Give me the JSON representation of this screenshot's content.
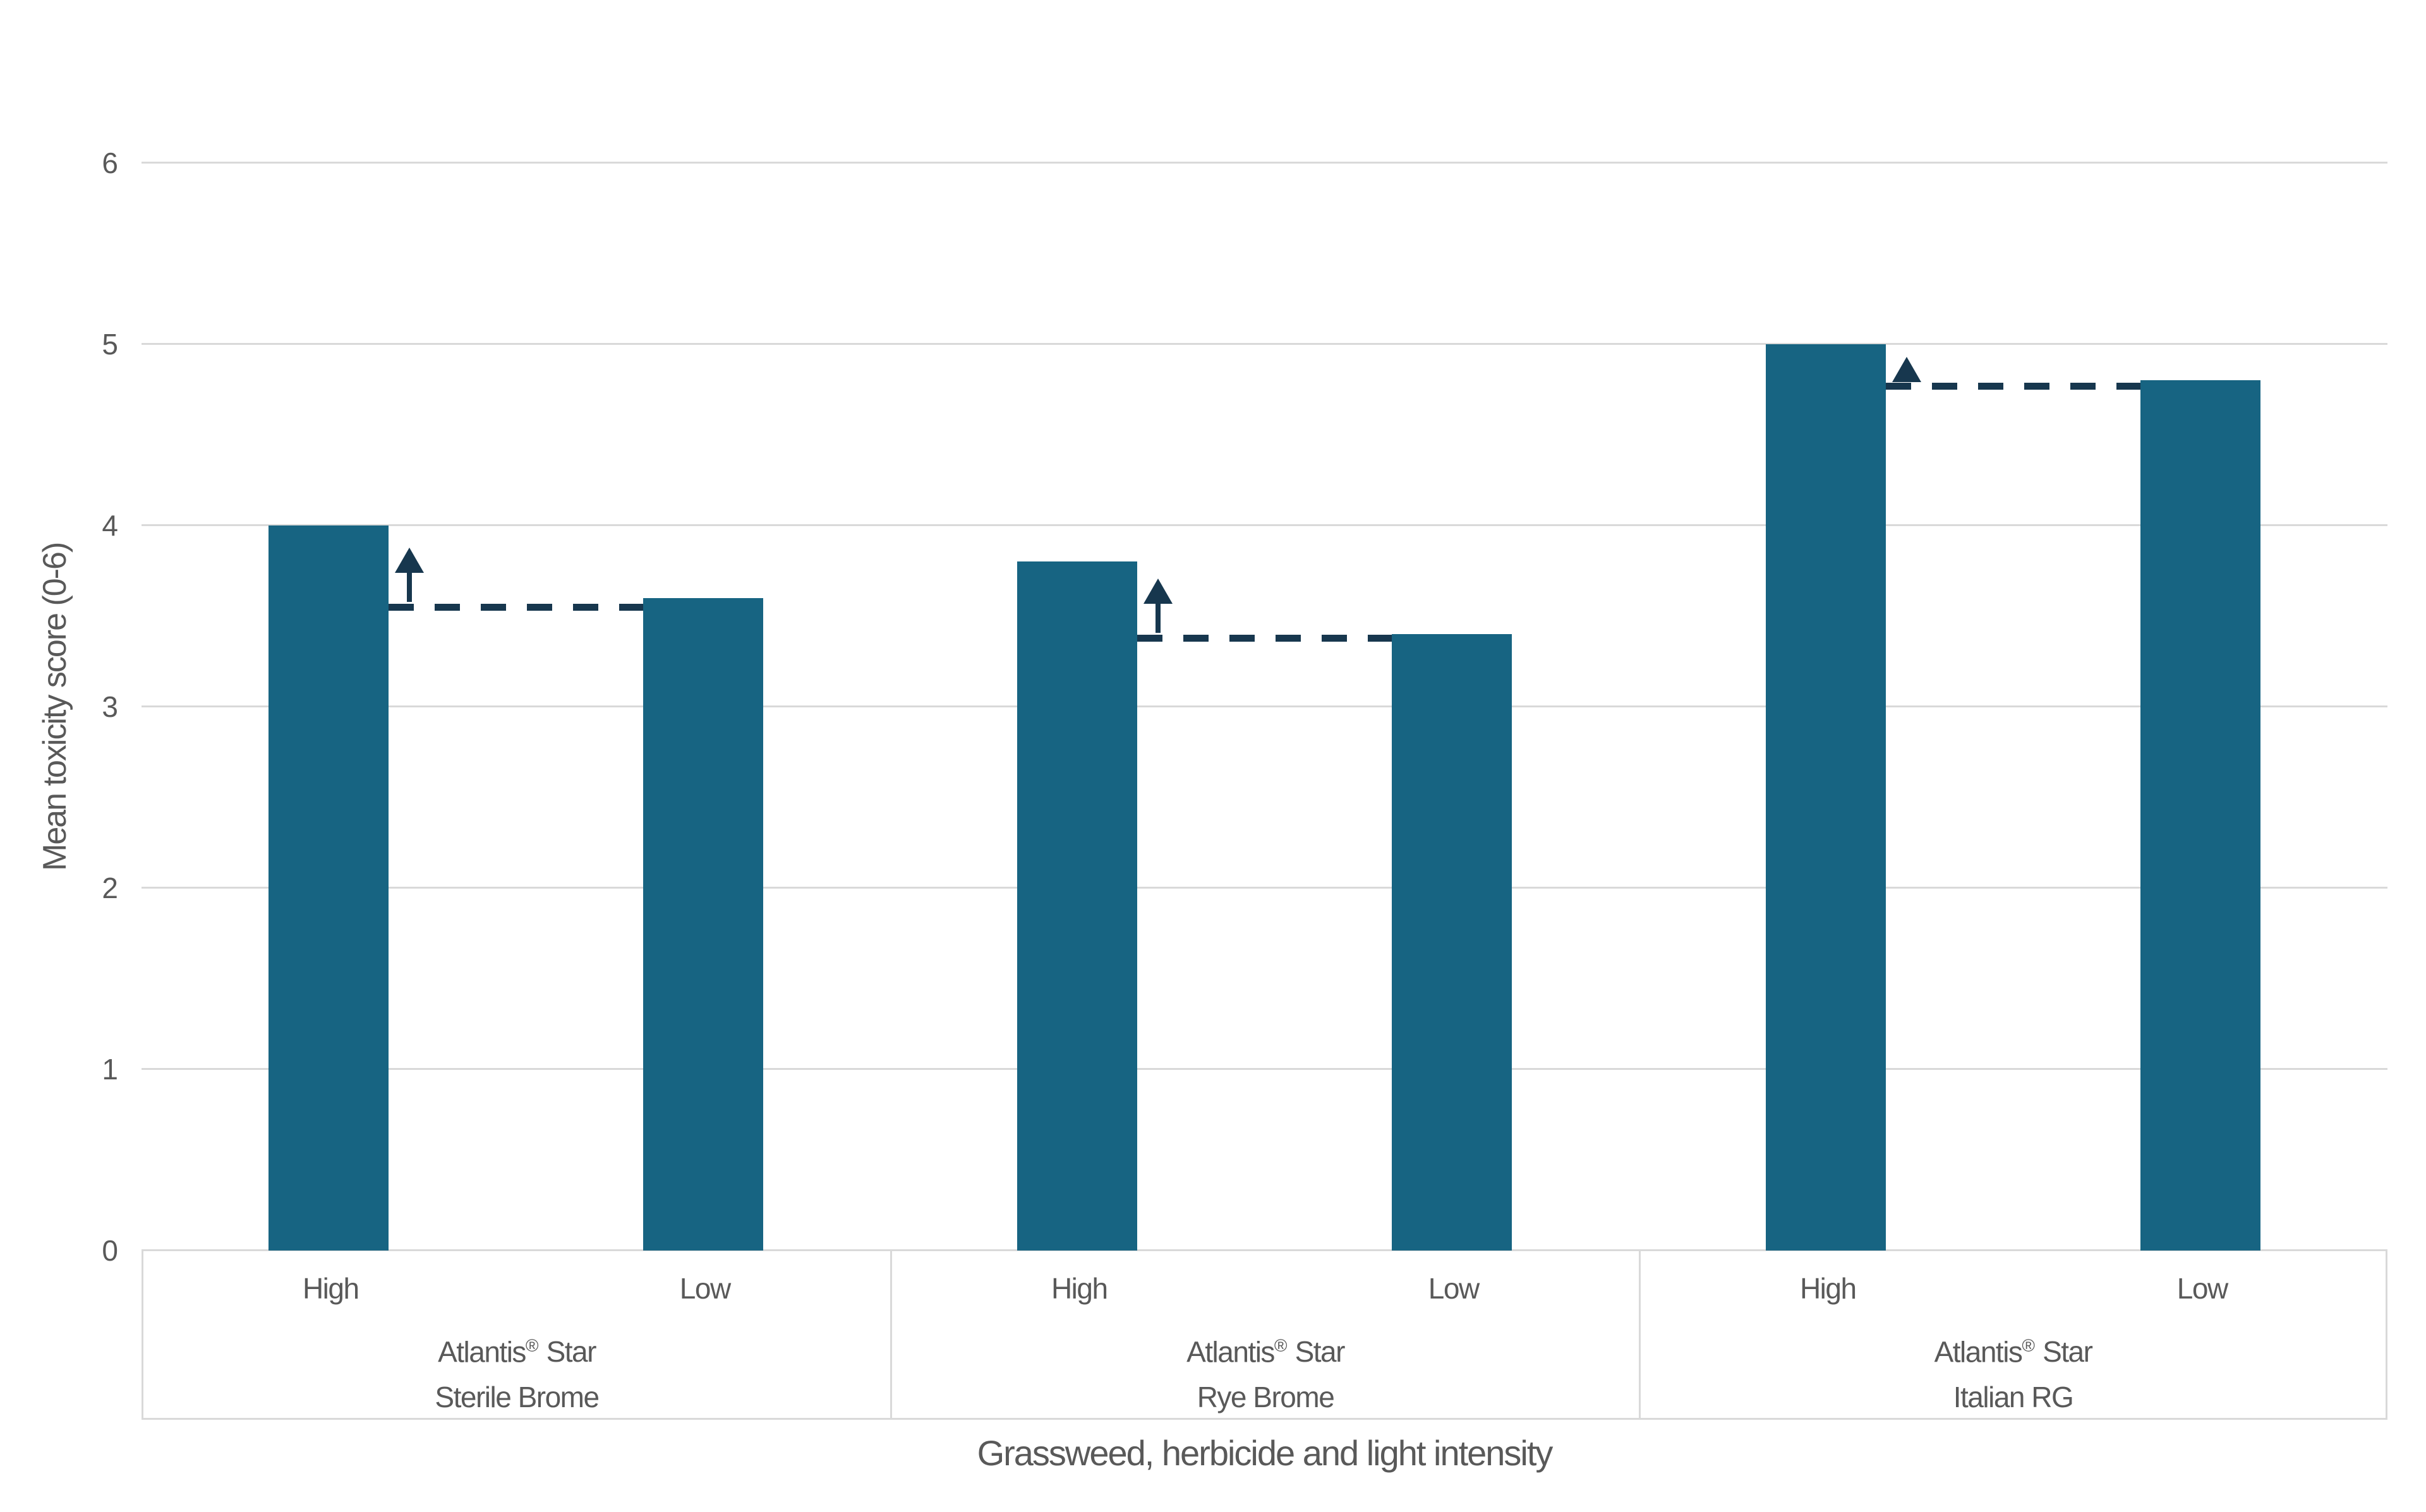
{
  "colors": {
    "bar": "#176482",
    "annotation": "#17374e",
    "gridline": "#d9d9d9",
    "text": "#595959",
    "background": "#ffffff"
  },
  "chart_data": {
    "type": "bar",
    "title": "",
    "ylabel": "Mean toxicity score (0-6)",
    "xlabel": "Grassweed, herbicide and light intensity",
    "ylim": [
      0,
      6
    ],
    "yticks": [
      "0",
      "1",
      "2",
      "3",
      "4",
      "5",
      "6"
    ],
    "grid": true,
    "legend": null,
    "category_levels": [
      "light intensity",
      "herbicide",
      "grassweed"
    ],
    "groups": [
      {
        "weed": "Sterile Brome",
        "herbicide": "Atlantis",
        "herbicide_reg": "®",
        "herbicide_suffix": "Star",
        "bars": [
          {
            "label": "High",
            "value": 4.0
          },
          {
            "label": "Low",
            "value": 3.6
          }
        ],
        "annotation": {
          "dash_level": 3.55,
          "arrow": "up"
        }
      },
      {
        "weed": "Rye Brome",
        "herbicide": "Atlantis",
        "herbicide_reg": "®",
        "herbicide_suffix": "Star",
        "bars": [
          {
            "label": "High",
            "value": 3.8
          },
          {
            "label": "Low",
            "value": 3.4
          }
        ],
        "annotation": {
          "dash_level": 3.38,
          "arrow": "up"
        }
      },
      {
        "weed": "Italian RG",
        "herbicide": "Atlantis",
        "herbicide_reg": "®",
        "herbicide_suffix": "Star",
        "bars": [
          {
            "label": "High",
            "value": 5.0
          },
          {
            "label": "Low",
            "value": 4.8
          }
        ],
        "annotation": {
          "dash_level": 4.77,
          "arrow": "up"
        }
      }
    ]
  }
}
